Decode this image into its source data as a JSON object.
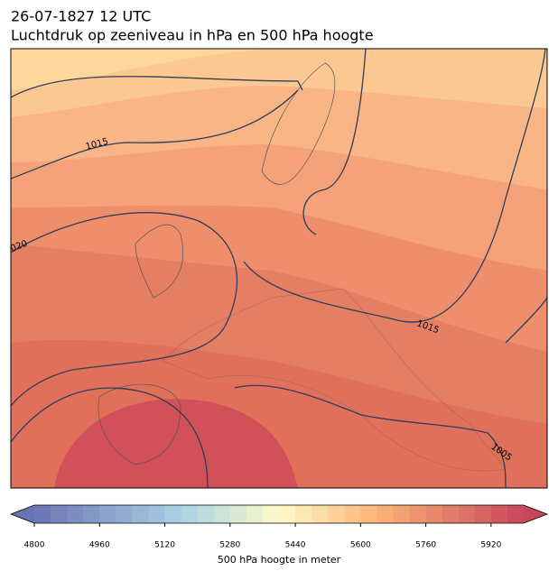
{
  "header": {
    "date": "26-07-1827 12 UTC",
    "title": "Luchtdruk op zeeniveau in hPa en 500 hPa hoogte"
  },
  "map": {
    "contour_labels": [
      "1015",
      "020",
      "1015",
      "1005"
    ]
  },
  "colorbar": {
    "label": "500 hPa hoogte in meter",
    "lim": [
      4800,
      6000
    ],
    "ticks": [
      4800,
      4960,
      5120,
      5280,
      5440,
      5600,
      5760,
      5920
    ]
  }
}
